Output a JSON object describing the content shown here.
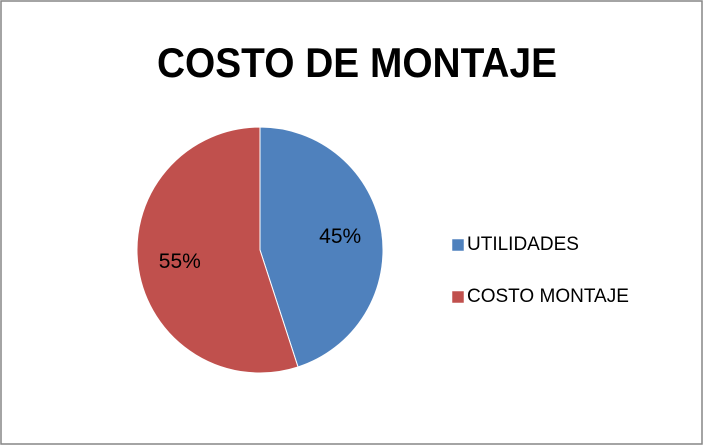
{
  "chart_data": {
    "type": "pie",
    "title": "COSTO DE MONTAJE",
    "categories": [
      "UTILIDADES",
      "COSTO MONTAJE"
    ],
    "values": [
      45,
      55
    ],
    "value_labels": [
      "45%",
      "55%"
    ],
    "colors": [
      "#4f81bd",
      "#c0504d"
    ],
    "legend": "right"
  }
}
